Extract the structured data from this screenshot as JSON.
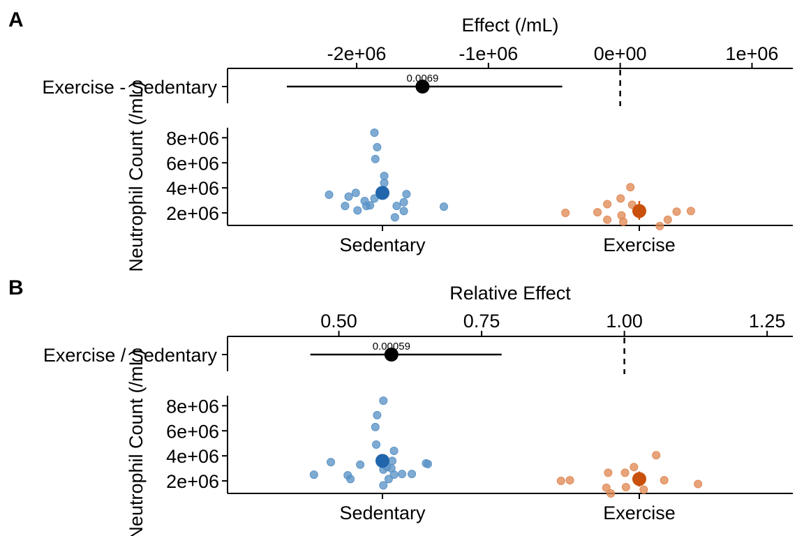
{
  "colors": {
    "sedentary": "#2166ac",
    "sedentary_points": "#5b93c6",
    "exercise": "#c9510c",
    "exercise_points": "#e08a56",
    "line": "#000000"
  },
  "chart_data": [
    {
      "panel": "A",
      "type": "scatter",
      "effect_axis": {
        "xlabel": "Effect (/mL)",
        "ticks": [
          -2000000,
          -1000000,
          0,
          1000000
        ],
        "tick_labels": [
          "-2e+06",
          "-1e+06",
          "0e+00",
          "1e+06"
        ],
        "xlim": [
          -2980000,
          1310000
        ]
      },
      "effect": {
        "label": "Exercise - Sedentary",
        "estimate": -1500000,
        "ci": [
          -2530000,
          -440000
        ],
        "p_value": "0.0069",
        "reference": 0
      },
      "ylabel": "Neutrophil Count (/mL)",
      "yticks": [
        2000000,
        4000000,
        6000000,
        8000000
      ],
      "ytick_labels": [
        "2e+06",
        "4e+06",
        "6e+06",
        "8e+06"
      ],
      "ylim": [
        1000000,
        8800000
      ],
      "categories": [
        "Sedentary",
        "Exercise"
      ],
      "series": [
        {
          "name": "Sedentary",
          "mean": 3600000,
          "ci": [
            3300000,
            3950000
          ],
          "points": [
            {
              "x": -0.3,
              "y": 3450000
            },
            {
              "x": -0.21,
              "y": 2550000
            },
            {
              "x": -0.19,
              "y": 3300000
            },
            {
              "x": -0.15,
              "y": 3600000
            },
            {
              "x": -0.14,
              "y": 2200000
            },
            {
              "x": -0.1,
              "y": 2950000
            },
            {
              "x": -0.09,
              "y": 2550000
            },
            {
              "x": -0.07,
              "y": 2600000
            },
            {
              "x": -0.045,
              "y": 3150000
            },
            {
              "x": -0.04,
              "y": 6300000
            },
            {
              "x": -0.045,
              "y": 8400000
            },
            {
              "x": -0.03,
              "y": 7250000
            },
            {
              "x": 0.01,
              "y": 4950000
            },
            {
              "x": 0.01,
              "y": 4400000
            },
            {
              "x": 0.07,
              "y": 1650000
            },
            {
              "x": 0.08,
              "y": 2550000
            },
            {
              "x": 0.12,
              "y": 2850000
            },
            {
              "x": 0.12,
              "y": 2150000
            },
            {
              "x": 0.135,
              "y": 3500000
            },
            {
              "x": 0.345,
              "y": 2500000
            }
          ]
        },
        {
          "name": "Exercise",
          "mean": 2150000,
          "ci": [
            1450000,
            2950000
          ],
          "points": [
            {
              "x": -0.415,
              "y": 2000000
            },
            {
              "x": -0.235,
              "y": 2050000
            },
            {
              "x": -0.18,
              "y": 2700000
            },
            {
              "x": -0.18,
              "y": 1450000
            },
            {
              "x": -0.105,
              "y": 3150000
            },
            {
              "x": -0.1,
              "y": 1800000
            },
            {
              "x": -0.09,
              "y": 1300000
            },
            {
              "x": -0.05,
              "y": 4050000
            },
            {
              "x": -0.04,
              "y": 2650000
            },
            {
              "x": 0.115,
              "y": 950000
            },
            {
              "x": 0.16,
              "y": 1450000
            },
            {
              "x": 0.21,
              "y": 2100000
            },
            {
              "x": 0.29,
              "y": 2150000
            }
          ]
        }
      ]
    },
    {
      "panel": "B",
      "type": "scatter",
      "effect_axis": {
        "xlabel": "Relative Effect",
        "ticks": [
          0.5,
          0.75,
          1.0,
          1.25
        ],
        "tick_labels": [
          "0.50",
          "0.75",
          "1.00",
          "1.25"
        ],
        "xlim": [
          0.305,
          1.295
        ]
      },
      "effect": {
        "label": "Exercise / Sedentary",
        "estimate": 0.592,
        "ci": [
          0.45,
          0.785
        ],
        "p_value": "0.00059",
        "reference": 1.0
      },
      "ylabel": "Neutrophil Count (/mL)",
      "yticks": [
        2000000,
        4000000,
        6000000,
        8000000
      ],
      "ytick_labels": [
        "2e+06",
        "4e+06",
        "6e+06",
        "8e+06"
      ],
      "ylim": [
        1000000,
        8800000
      ],
      "categories": [
        "Sedentary",
        "Exercise"
      ],
      "series": [
        {
          "name": "Sedentary",
          "mean": 3600000,
          "ci": [
            3300000,
            4000000
          ],
          "points": [
            {
              "x": -0.385,
              "y": 2500000
            },
            {
              "x": -0.29,
              "y": 3500000
            },
            {
              "x": -0.195,
              "y": 2450000
            },
            {
              "x": -0.18,
              "y": 2150000
            },
            {
              "x": -0.125,
              "y": 3300000
            },
            {
              "x": -0.04,
              "y": 6300000
            },
            {
              "x": -0.035,
              "y": 4900000
            },
            {
              "x": -0.03,
              "y": 7250000
            },
            {
              "x": 0.005,
              "y": 8400000
            },
            {
              "x": 0.005,
              "y": 2900000
            },
            {
              "x": 0.005,
              "y": 1650000
            },
            {
              "x": 0.025,
              "y": 3100000
            },
            {
              "x": 0.035,
              "y": 2150000
            },
            {
              "x": 0.05,
              "y": 3000000
            },
            {
              "x": 0.055,
              "y": 3600000
            },
            {
              "x": 0.065,
              "y": 2500000
            },
            {
              "x": 0.065,
              "y": 4400000
            },
            {
              "x": 0.11,
              "y": 2550000
            },
            {
              "x": 0.165,
              "y": 2550000
            },
            {
              "x": 0.245,
              "y": 3400000
            },
            {
              "x": 0.255,
              "y": 3350000
            }
          ]
        },
        {
          "name": "Exercise",
          "mean": 2150000,
          "ci": [
            1550000,
            2750000
          ],
          "points": [
            {
              "x": -0.44,
              "y": 2000000
            },
            {
              "x": -0.39,
              "y": 2050000
            },
            {
              "x": -0.185,
              "y": 1450000
            },
            {
              "x": -0.175,
              "y": 2650000
            },
            {
              "x": -0.16,
              "y": 1000000
            },
            {
              "x": -0.08,
              "y": 2650000
            },
            {
              "x": -0.075,
              "y": 1500000
            },
            {
              "x": -0.03,
              "y": 3100000
            },
            {
              "x": 0.025,
              "y": 1300000
            },
            {
              "x": 0.095,
              "y": 4050000
            },
            {
              "x": 0.14,
              "y": 2050000
            },
            {
              "x": 0.33,
              "y": 1750000
            }
          ]
        }
      ]
    }
  ]
}
